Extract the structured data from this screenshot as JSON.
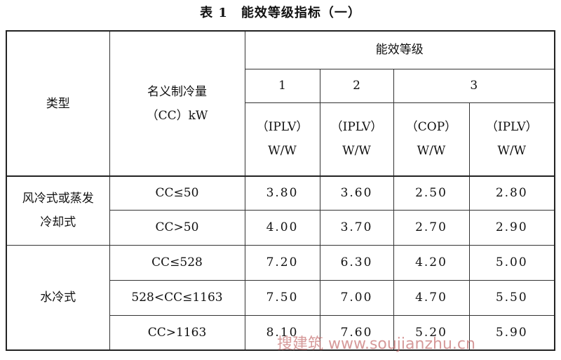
{
  "title": "表 1　能效等级指标（一）",
  "table": {
    "header": {
      "type": "类型",
      "capacity": [
        "名义制冷量",
        "（CC）kW"
      ],
      "group": "能效等级",
      "levels": [
        "1",
        "2",
        "3"
      ],
      "units": [
        [
          "（IPLV）",
          "W/W"
        ],
        [
          "（IPLV）",
          "W/W"
        ],
        [
          "（COP）",
          "W/W"
        ],
        [
          "（IPLV）",
          "W/W"
        ]
      ]
    },
    "groups": [
      {
        "type": [
          "风冷式或蒸发",
          "冷却式"
        ],
        "rows": [
          {
            "capacity": "CC≤50",
            "values": [
              "3.80",
              "3.60",
              "2.50",
              "2.80"
            ]
          },
          {
            "capacity": "CC>50",
            "values": [
              "4.00",
              "3.70",
              "2.70",
              "2.90"
            ]
          }
        ]
      },
      {
        "type": [
          "水冷式"
        ],
        "rows": [
          {
            "capacity": "CC≤528",
            "values": [
              "7.20",
              "6.30",
              "4.20",
              "5.00"
            ]
          },
          {
            "capacity": "528<CC≤1163",
            "values": [
              "7.50",
              "7.00",
              "4.70",
              "5.50"
            ]
          },
          {
            "capacity": "CC>1163",
            "values": [
              "8.10",
              "7.60",
              "5.20",
              "5.90"
            ]
          }
        ]
      }
    ]
  },
  "watermark": "搜建筑 www.soujianzhu.cn"
}
